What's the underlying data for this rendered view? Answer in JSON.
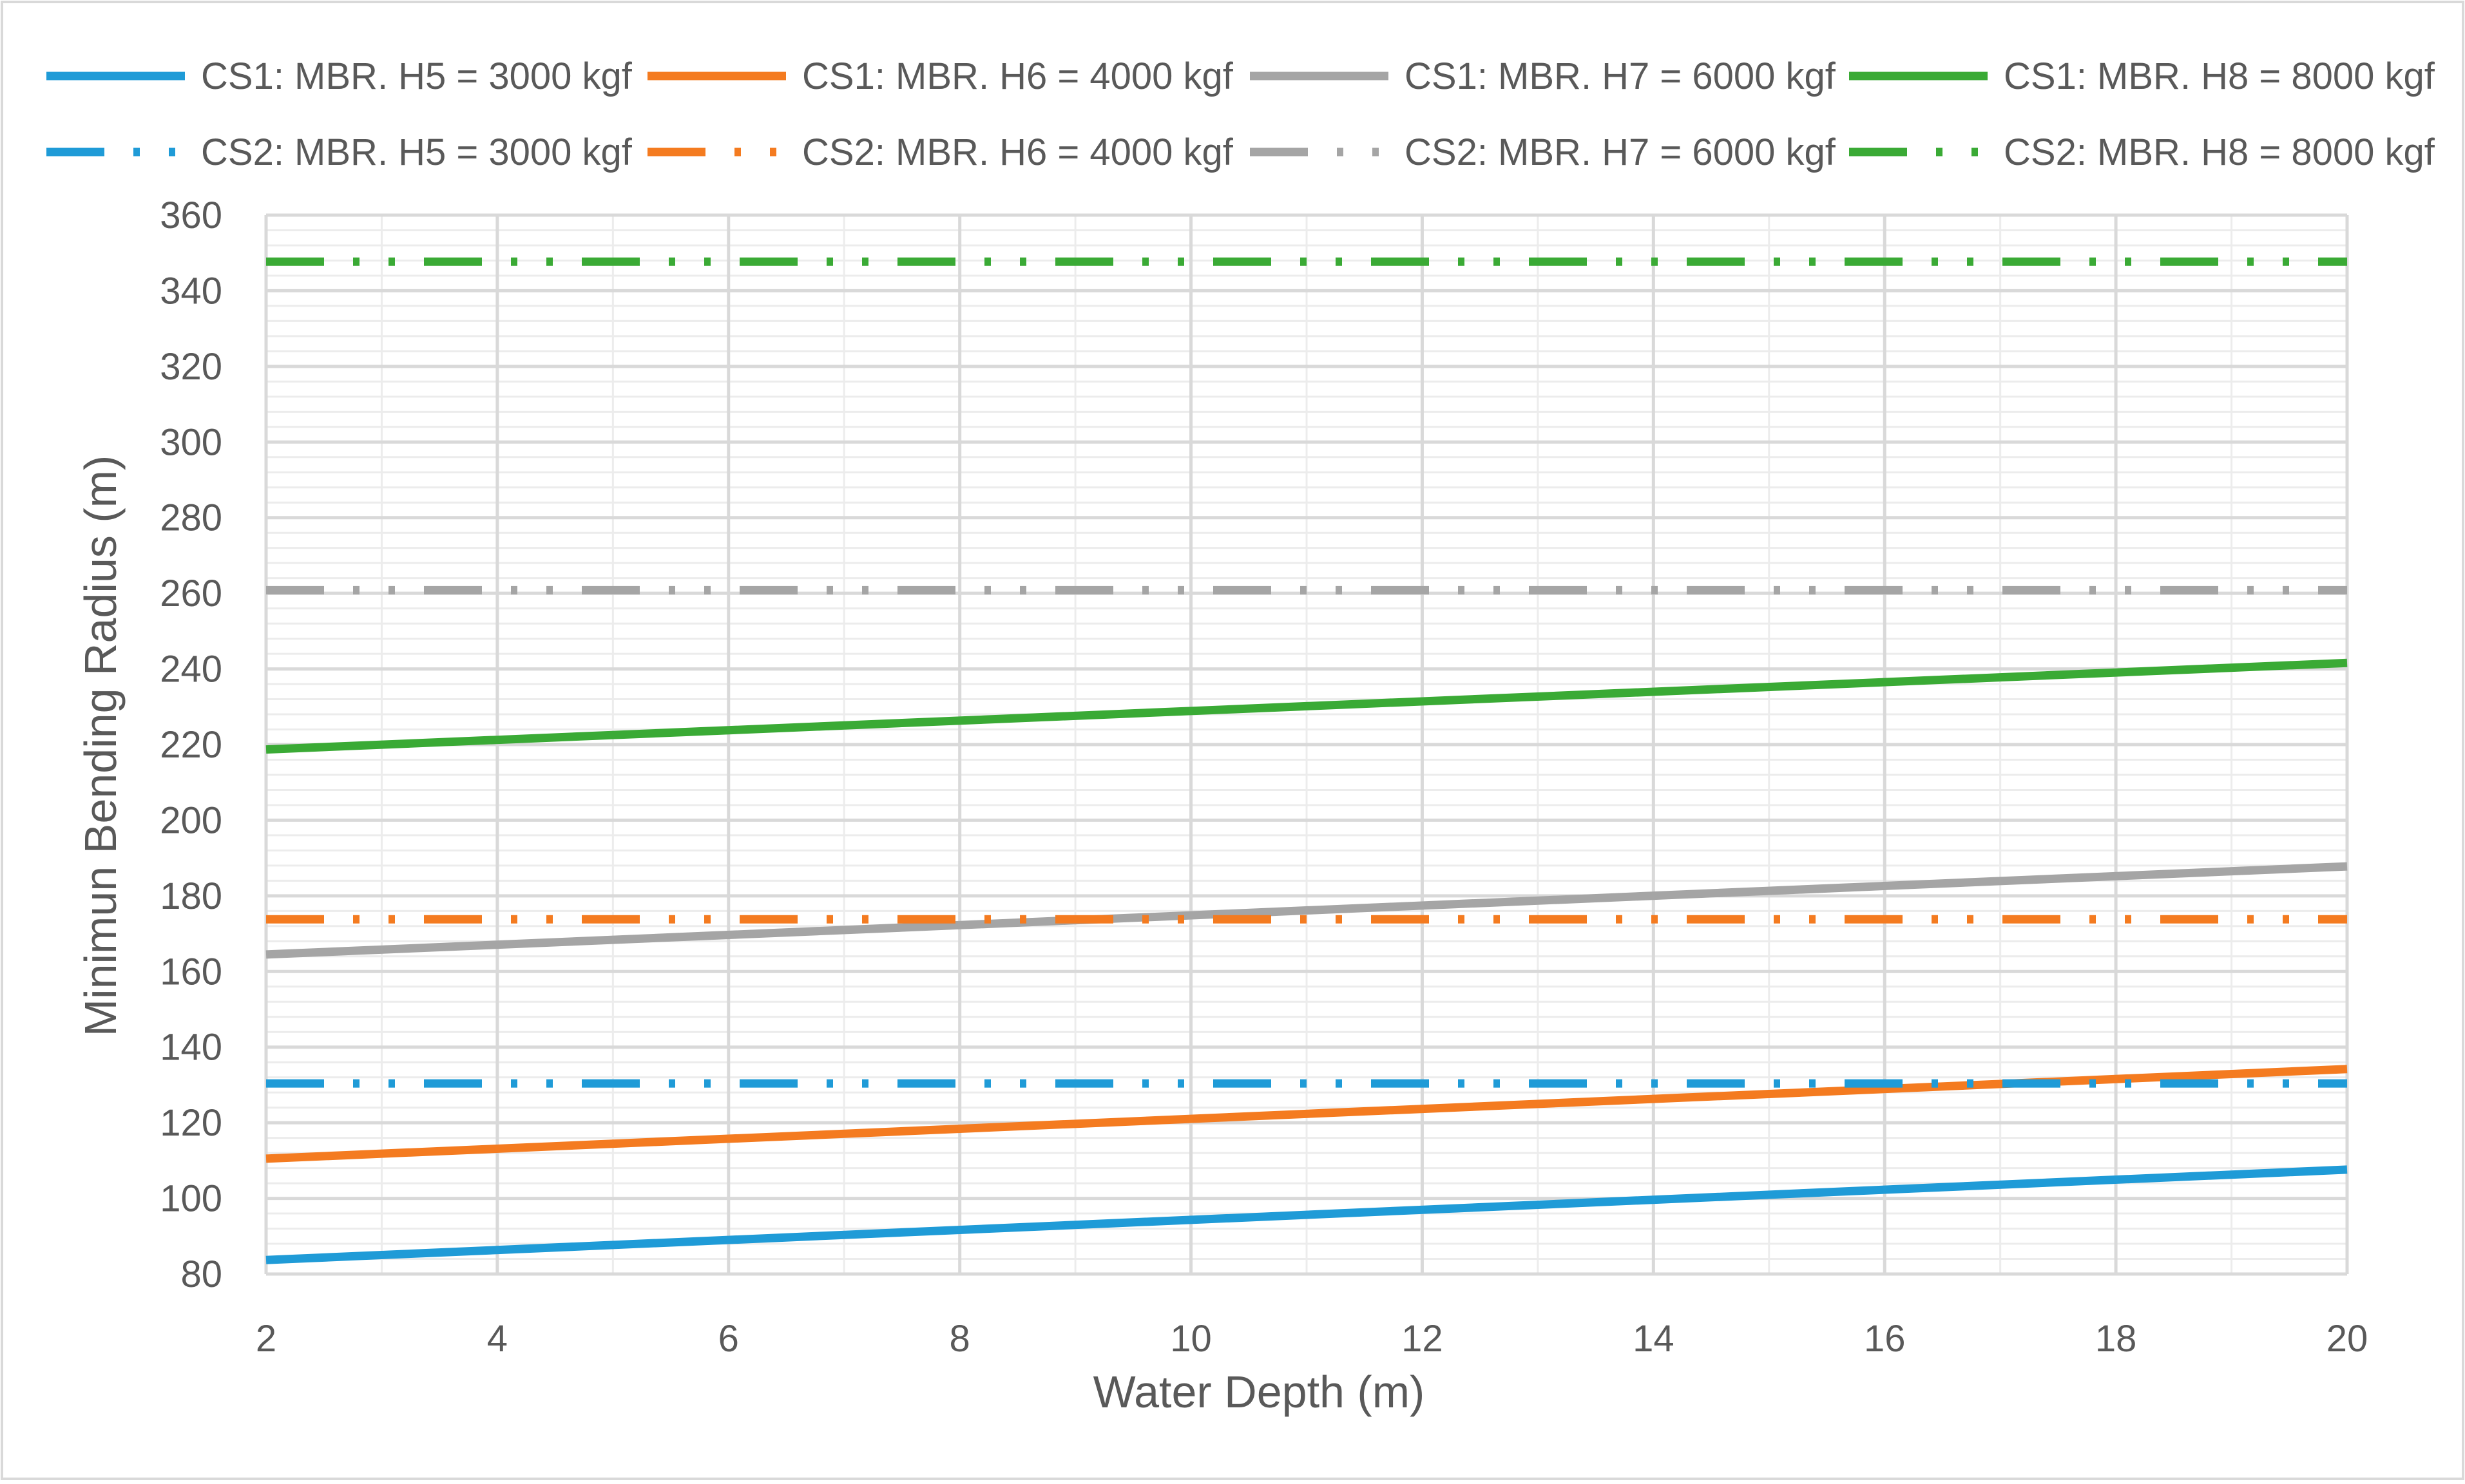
{
  "chart_data": {
    "type": "line",
    "title": "",
    "xlabel": "Water Depth (m)",
    "ylabel": "Minimun Bending Radius (m)",
    "xlim": [
      2,
      20
    ],
    "ylim": [
      80,
      360
    ],
    "x_ticks": [
      2,
      4,
      6,
      8,
      10,
      12,
      14,
      16,
      18,
      20
    ],
    "y_ticks": [
      80,
      100,
      120,
      140,
      160,
      180,
      200,
      220,
      240,
      260,
      280,
      300,
      320,
      340,
      360
    ],
    "grid": {
      "major": true,
      "minor": true
    },
    "legend_position": "top",
    "x": [
      2,
      20
    ],
    "series": [
      {
        "name": "CS1: MBR. H5 = 3000 kgf",
        "color": "#1f9bd7",
        "style": "solid",
        "values": [
          83.7,
          107.6
        ]
      },
      {
        "name": "CS1: MBR. H6 = 4000 kgf",
        "color": "#f47b20",
        "style": "solid",
        "values": [
          110.5,
          134.2
        ]
      },
      {
        "name": "CS1: MBR. H7 = 6000 kgf",
        "color": "#a5a5a5",
        "style": "solid",
        "values": [
          164.5,
          187.8
        ]
      },
      {
        "name": "CS1: MBR. H8 = 8000 kgf",
        "color": "#3aaa35",
        "style": "solid",
        "values": [
          218.7,
          241.6
        ]
      },
      {
        "name": "CS2: MBR. H5 = 3000 kgf",
        "color": "#1f9bd7",
        "style": "dashdotdot",
        "values": [
          130.4,
          130.4
        ]
      },
      {
        "name": "CS2: MBR. H6 = 4000 kgf",
        "color": "#f47b20",
        "style": "dashdotdot",
        "values": [
          173.8,
          173.8
        ]
      },
      {
        "name": "CS2: MBR. H7 = 6000 kgf",
        "color": "#a5a5a5",
        "style": "dashdotdot",
        "values": [
          260.8,
          260.8
        ]
      },
      {
        "name": "CS2: MBR. H8 = 8000 kgf",
        "color": "#3aaa35",
        "style": "dashdotdot",
        "values": [
          347.7,
          347.7
        ]
      }
    ]
  }
}
